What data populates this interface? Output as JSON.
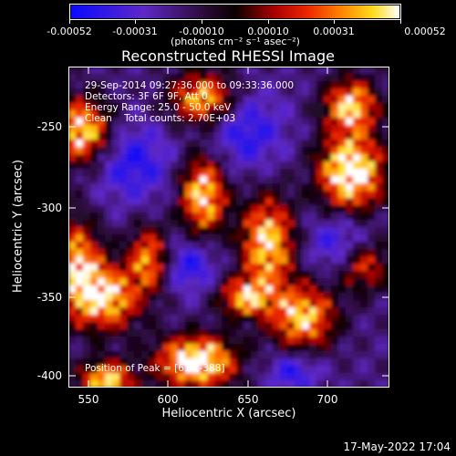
{
  "colorbar": {
    "labels": [
      "-0.00052",
      "-0.00031",
      "-0.00010",
      "0.00010",
      "0.00031",
      "0.00052"
    ],
    "units": "(photons cm⁻² s⁻¹ asec⁻²)"
  },
  "title": "Reconstructed RHESSI Image",
  "annotations": {
    "line1": "29-Sep-2014 09:27:36.000 to 09:33:36.000",
    "line2": "Detectors: 3F 6F 9F, Att 0",
    "line3": "Energy Range: 25.0 - 50.0 keV",
    "line4": "Clean    Total counts: 2.70E+03",
    "peak": "Position of Peak = [614,-388]"
  },
  "axes": {
    "xlabel": "Heliocentric X (arcsec)",
    "ylabel": "Heliocentric Y (arcsec)",
    "xticks": [
      "550",
      "600",
      "650",
      "700"
    ],
    "yticks": [
      "-250",
      "-300",
      "-350",
      "-400"
    ]
  },
  "timestamp": "17-May-2022 17:04"
}
